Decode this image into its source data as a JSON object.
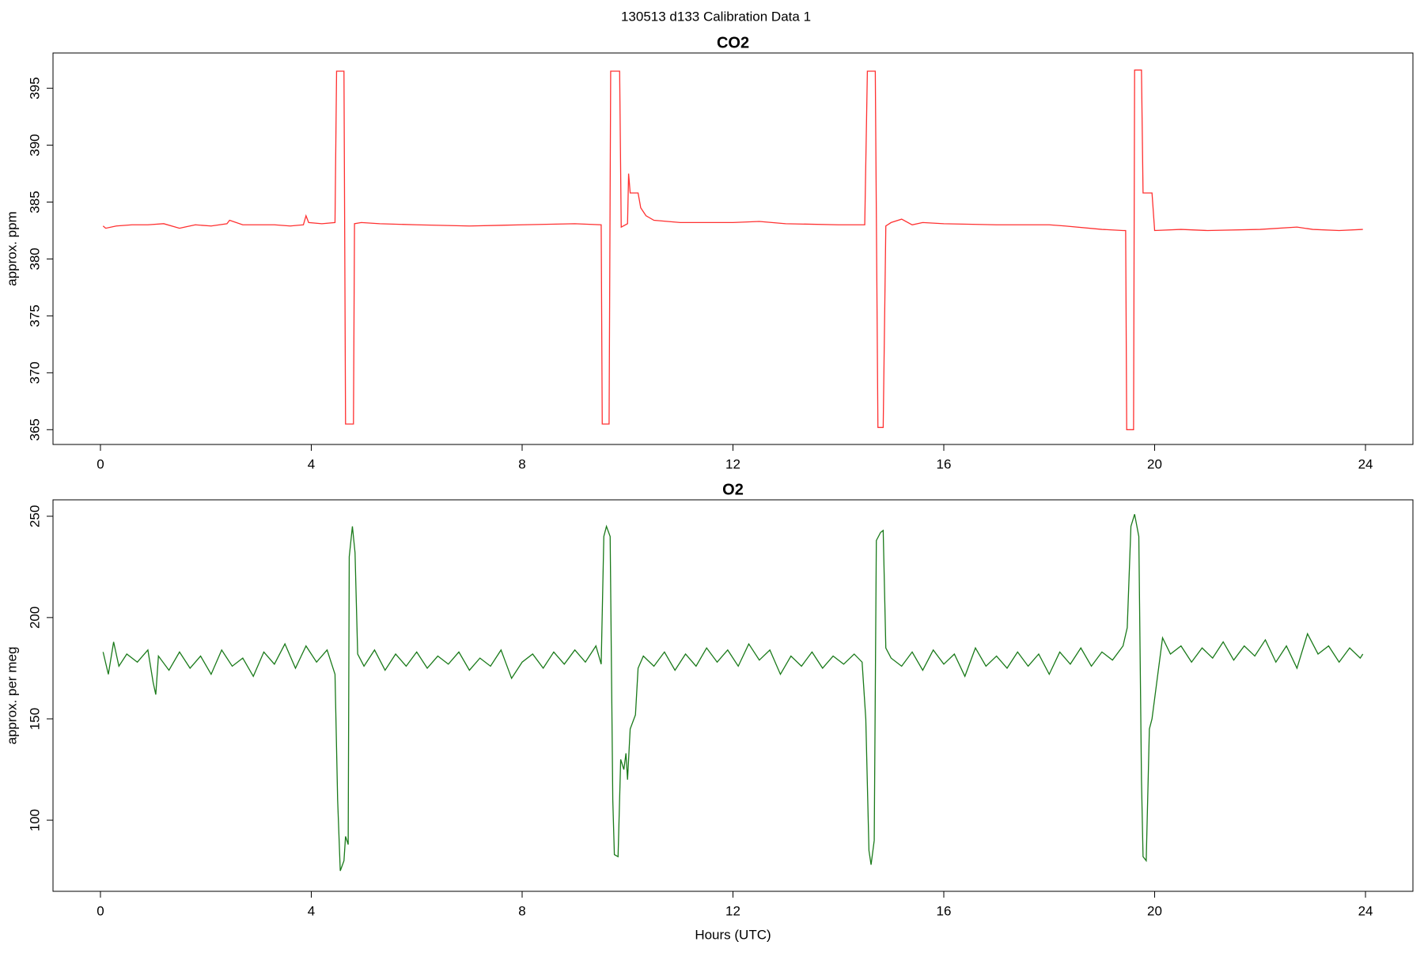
{
  "title": "130513   d133   Calibration Data 1",
  "chart_data": [
    {
      "type": "line",
      "title": "CO2",
      "ylabel": "approx. ppm",
      "color": "#ff3030",
      "xlim": [
        -0.9,
        24.9
      ],
      "xticks": [
        0,
        4,
        8,
        12,
        16,
        20,
        24
      ],
      "ylim": [
        363.7,
        398.1
      ],
      "yticks": [
        365,
        370,
        375,
        380,
        385,
        390,
        395
      ],
      "x": [
        0.05,
        0.1,
        0.3,
        0.6,
        0.9,
        1.2,
        1.5,
        1.6,
        1.8,
        2.1,
        2.4,
        2.45,
        2.7,
        3.0,
        3.3,
        3.6,
        3.85,
        3.9,
        3.95,
        4.2,
        4.45,
        4.48,
        4.62,
        4.65,
        4.8,
        4.82,
        4.95,
        5.3,
        6,
        7,
        8,
        9,
        9.5,
        9.52,
        9.65,
        9.68,
        9.85,
        9.88,
        10.0,
        10.02,
        10.05,
        10.1,
        10.2,
        10.25,
        10.35,
        10.5,
        11,
        12,
        12.5,
        13,
        14,
        14.5,
        14.55,
        14.7,
        14.75,
        14.85,
        14.9,
        15.0,
        15.2,
        15.4,
        15.6,
        16,
        17,
        18,
        18.3,
        19,
        19.4,
        19.45,
        19.47,
        19.6,
        19.62,
        19.75,
        19.78,
        19.95,
        20.0,
        20.5,
        21,
        22,
        22.7,
        23,
        23.5,
        23.95
      ],
      "values": [
        382.9,
        382.7,
        382.9,
        383.0,
        383.0,
        383.1,
        382.7,
        382.8,
        383.0,
        382.9,
        383.1,
        383.4,
        383.0,
        383.0,
        383.0,
        382.9,
        383.0,
        383.8,
        383.2,
        383.1,
        383.2,
        396.5,
        396.5,
        365.5,
        365.5,
        383.1,
        383.2,
        383.1,
        383.0,
        382.9,
        383.0,
        383.1,
        383.0,
        365.5,
        365.5,
        396.5,
        396.5,
        382.8,
        383.1,
        387.5,
        385.8,
        385.8,
        385.8,
        384.5,
        383.8,
        383.4,
        383.2,
        383.2,
        383.3,
        383.1,
        383.0,
        383.0,
        396.5,
        396.5,
        365.2,
        365.2,
        382.9,
        383.2,
        383.5,
        383.0,
        383.2,
        383.1,
        383.0,
        383.0,
        382.9,
        382.6,
        382.5,
        382.5,
        365.0,
        365.0,
        396.6,
        396.6,
        385.8,
        385.8,
        382.5,
        382.6,
        382.5,
        382.6,
        382.8,
        382.6,
        382.5,
        382.6
      ]
    },
    {
      "type": "line",
      "title": "O2",
      "ylabel": "approx. per meg",
      "xlabel": "Hours (UTC)",
      "color": "#1a7a1a",
      "xlim": [
        -0.9,
        24.9
      ],
      "xticks": [
        0,
        4,
        8,
        12,
        16,
        20,
        24
      ],
      "ylim": [
        64.9,
        258.1
      ],
      "yticks": [
        100,
        150,
        200,
        250
      ],
      "x": [
        0.05,
        0.15,
        0.25,
        0.35,
        0.5,
        0.7,
        0.9,
        1.0,
        1.05,
        1.1,
        1.3,
        1.5,
        1.7,
        1.9,
        2.1,
        2.3,
        2.5,
        2.7,
        2.9,
        3.1,
        3.3,
        3.5,
        3.7,
        3.9,
        4.1,
        4.3,
        4.45,
        4.5,
        4.55,
        4.62,
        4.65,
        4.7,
        4.72,
        4.78,
        4.83,
        4.88,
        5.0,
        5.2,
        5.4,
        5.6,
        5.8,
        6.0,
        6.2,
        6.4,
        6.6,
        6.8,
        7.0,
        7.2,
        7.4,
        7.6,
        7.8,
        8.0,
        8.2,
        8.4,
        8.6,
        8.8,
        9.0,
        9.2,
        9.4,
        9.5,
        9.55,
        9.6,
        9.67,
        9.72,
        9.75,
        9.82,
        9.87,
        9.93,
        9.97,
        10.0,
        10.05,
        10.15,
        10.2,
        10.3,
        10.5,
        10.7,
        10.9,
        11.1,
        11.3,
        11.5,
        11.7,
        11.9,
        12.1,
        12.3,
        12.5,
        12.7,
        12.9,
        13.1,
        13.3,
        13.5,
        13.7,
        13.9,
        14.1,
        14.3,
        14.45,
        14.52,
        14.58,
        14.62,
        14.68,
        14.72,
        14.8,
        14.85,
        14.9,
        15.0,
        15.2,
        15.4,
        15.6,
        15.8,
        16.0,
        16.2,
        16.4,
        16.6,
        16.8,
        17.0,
        17.2,
        17.4,
        17.6,
        17.8,
        18.0,
        18.2,
        18.4,
        18.6,
        18.8,
        19.0,
        19.2,
        19.4,
        19.48,
        19.55,
        19.62,
        19.7,
        19.75,
        19.78,
        19.84,
        19.9,
        19.95,
        20.05,
        20.15,
        20.3,
        20.5,
        20.7,
        20.9,
        21.1,
        21.3,
        21.5,
        21.7,
        21.9,
        22.1,
        22.3,
        22.5,
        22.7,
        22.9,
        23.1,
        23.3,
        23.5,
        23.7,
        23.9,
        23.95
      ],
      "values": [
        183,
        172,
        188,
        176,
        182,
        178,
        184,
        168,
        162,
        181,
        174,
        183,
        175,
        181,
        172,
        184,
        176,
        180,
        171,
        183,
        177,
        187,
        175,
        186,
        178,
        184,
        172,
        110,
        75,
        80,
        92,
        88,
        230,
        245,
        232,
        182,
        176,
        184,
        174,
        182,
        176,
        183,
        175,
        181,
        177,
        183,
        174,
        180,
        176,
        184,
        170,
        178,
        182,
        175,
        183,
        177,
        184,
        178,
        186,
        177,
        240,
        245,
        240,
        110,
        83,
        82,
        130,
        125,
        133,
        120,
        145,
        152,
        175,
        181,
        176,
        183,
        174,
        182,
        176,
        185,
        178,
        184,
        176,
        187,
        179,
        184,
        172,
        181,
        176,
        183,
        175,
        181,
        177,
        182,
        178,
        150,
        85,
        78,
        90,
        238,
        242,
        243,
        185,
        180,
        176,
        183,
        174,
        184,
        177,
        182,
        171,
        185,
        176,
        181,
        175,
        183,
        176,
        182,
        172,
        183,
        177,
        185,
        176,
        183,
        179,
        186,
        195,
        245,
        251,
        240,
        120,
        82,
        80,
        145,
        150,
        170,
        190,
        182,
        186,
        178,
        185,
        180,
        188,
        179,
        186,
        181,
        189,
        178,
        186,
        175,
        192,
        182,
        186,
        178,
        185,
        180,
        182
      ]
    }
  ]
}
